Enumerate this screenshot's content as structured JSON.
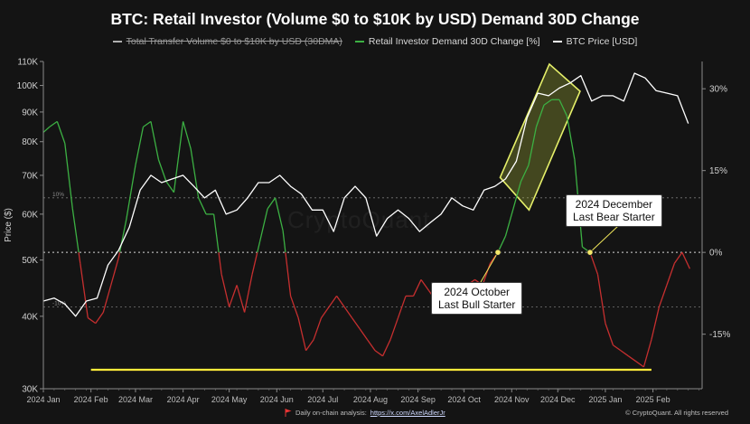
{
  "chart_data": {
    "type": "line",
    "title": "BTC: Retail Investor (Volume $0 to $10K by USD) Demand 30D Change",
    "ylabel_left": "Price ($)",
    "left_axis": {
      "scale": "log",
      "range": [
        30000,
        110000
      ],
      "ticks": [
        "30K",
        "40K",
        "50K",
        "60K",
        "70K",
        "80K",
        "90K",
        "100K",
        "110K"
      ],
      "tick_values": [
        30000,
        40000,
        50000,
        60000,
        70000,
        80000,
        90000,
        100000,
        110000
      ]
    },
    "right_axis": {
      "range": [
        -0.25,
        0.35
      ],
      "ticks": [
        "30%",
        "15%",
        "0%",
        "-15%"
      ],
      "tick_values": [
        0.3,
        0.15,
        0.0,
        -0.15
      ]
    },
    "reference_lines": [
      {
        "label": "10%",
        "value": 0.1
      },
      {
        "label": "-10%",
        "value": -0.1
      }
    ],
    "x_ticks": [
      "2024 Jan",
      "2024 Feb",
      "2024 Mar",
      "2024 Apr",
      "2024 May",
      "2024 Jun",
      "2024 Jul",
      "2024 Aug",
      "2024 Sep",
      "2024 Oct",
      "2024 Nov",
      "2024 Dec",
      "2025 Jan",
      "2025 Feb"
    ],
    "legend": [
      {
        "name": "Total Transfer Volume $0 to $10K by USD (30DMA)",
        "color": "#b0b0b0",
        "struck": true
      },
      {
        "name": "Retail Investor Demand 30D Change [%]",
        "color": "#3cb043",
        "struck": false
      },
      {
        "name": "BTC Price [USD]",
        "color": "#ffffff",
        "struck": false
      }
    ],
    "series": [
      {
        "name": "BTC Price [USD]",
        "axis": "left",
        "color": "#ffffff",
        "x": [
          "2024-01-01",
          "2024-01-08",
          "2024-01-15",
          "2024-01-22",
          "2024-01-29",
          "2024-02-05",
          "2024-02-12",
          "2024-02-19",
          "2024-02-26",
          "2024-03-04",
          "2024-03-11",
          "2024-03-18",
          "2024-03-25",
          "2024-04-01",
          "2024-04-08",
          "2024-04-15",
          "2024-04-22",
          "2024-04-29",
          "2024-05-06",
          "2024-05-13",
          "2024-05-20",
          "2024-05-27",
          "2024-06-03",
          "2024-06-10",
          "2024-06-17",
          "2024-06-24",
          "2024-07-01",
          "2024-07-08",
          "2024-07-15",
          "2024-07-22",
          "2024-07-29",
          "2024-08-05",
          "2024-08-12",
          "2024-08-19",
          "2024-08-26",
          "2024-09-02",
          "2024-09-09",
          "2024-09-16",
          "2024-09-23",
          "2024-09-30",
          "2024-10-07",
          "2024-10-14",
          "2024-10-21",
          "2024-10-28",
          "2024-11-04",
          "2024-11-11",
          "2024-11-18",
          "2024-11-25",
          "2024-12-02",
          "2024-12-09",
          "2024-12-16",
          "2024-12-23",
          "2024-12-30",
          "2025-01-06",
          "2025-01-13",
          "2025-01-20",
          "2025-01-27",
          "2025-02-03",
          "2025-02-10",
          "2025-02-17",
          "2025-02-24"
        ],
        "y": [
          42500,
          43000,
          42000,
          40000,
          42500,
          43000,
          49000,
          52000,
          57000,
          66000,
          70000,
          68000,
          69000,
          70000,
          67000,
          64000,
          66000,
          60000,
          61000,
          64000,
          68000,
          68000,
          70000,
          67000,
          65000,
          61000,
          61000,
          56000,
          64000,
          67000,
          64000,
          55000,
          59000,
          61000,
          59000,
          56000,
          58000,
          60000,
          64000,
          62000,
          61000,
          66000,
          67000,
          69000,
          74000,
          88000,
          97000,
          96000,
          99000,
          101000,
          104000,
          94000,
          96000,
          96000,
          94000,
          105000,
          103000,
          98000,
          97000,
          96000,
          86000
        ]
      },
      {
        "name": "Retail Investor Demand 30D Change [%]",
        "axis": "right",
        "color_positive": "#3cb043",
        "color_negative": "#c62f2f",
        "x": [
          "2024-01-01",
          "2024-01-05",
          "2024-01-10",
          "2024-01-15",
          "2024-01-20",
          "2024-01-25",
          "2024-01-30",
          "2024-02-04",
          "2024-02-09",
          "2024-02-14",
          "2024-02-19",
          "2024-02-24",
          "2024-03-01",
          "2024-03-06",
          "2024-03-11",
          "2024-03-16",
          "2024-03-21",
          "2024-03-26",
          "2024-04-01",
          "2024-04-06",
          "2024-04-11",
          "2024-04-16",
          "2024-04-21",
          "2024-04-26",
          "2024-05-01",
          "2024-05-06",
          "2024-05-11",
          "2024-05-16",
          "2024-05-21",
          "2024-05-26",
          "2024-05-31",
          "2024-06-05",
          "2024-06-10",
          "2024-06-15",
          "2024-06-20",
          "2024-06-25",
          "2024-06-30",
          "2024-07-05",
          "2024-07-10",
          "2024-07-15",
          "2024-07-20",
          "2024-07-25",
          "2024-07-30",
          "2024-08-04",
          "2024-08-09",
          "2024-08-14",
          "2024-08-19",
          "2024-08-24",
          "2024-08-29",
          "2024-09-03",
          "2024-09-08",
          "2024-09-13",
          "2024-09-18",
          "2024-09-23",
          "2024-09-28",
          "2024-10-03",
          "2024-10-08",
          "2024-10-13",
          "2024-10-18",
          "2024-10-23",
          "2024-10-28",
          "2024-11-02",
          "2024-11-07",
          "2024-11-12",
          "2024-11-17",
          "2024-11-22",
          "2024-11-27",
          "2024-12-02",
          "2024-12-07",
          "2024-12-12",
          "2024-12-17",
          "2024-12-22",
          "2024-12-27",
          "2025-01-01",
          "2025-01-06",
          "2025-01-11",
          "2025-01-16",
          "2025-01-21",
          "2025-01-26",
          "2025-01-31",
          "2025-02-05",
          "2025-02-10",
          "2025-02-15",
          "2025-02-20",
          "2025-02-25"
        ],
        "y": [
          0.22,
          0.23,
          0.24,
          0.2,
          0.08,
          -0.02,
          -0.12,
          -0.13,
          -0.11,
          -0.06,
          -0.01,
          0.06,
          0.16,
          0.23,
          0.24,
          0.17,
          0.13,
          0.11,
          0.24,
          0.19,
          0.1,
          0.07,
          0.07,
          -0.04,
          -0.1,
          -0.06,
          -0.11,
          -0.04,
          0.02,
          0.08,
          0.1,
          0.04,
          -0.08,
          -0.12,
          -0.18,
          -0.16,
          -0.12,
          -0.1,
          -0.08,
          -0.1,
          -0.12,
          -0.14,
          -0.16,
          -0.18,
          -0.19,
          -0.16,
          -0.12,
          -0.08,
          -0.08,
          -0.05,
          -0.07,
          -0.09,
          -0.07,
          -0.06,
          -0.08,
          -0.06,
          -0.05,
          -0.06,
          -0.02,
          0.0,
          0.03,
          0.08,
          0.13,
          0.16,
          0.23,
          0.27,
          0.28,
          0.28,
          0.25,
          0.17,
          0.01,
          0.0,
          -0.04,
          -0.13,
          -0.17,
          -0.18,
          -0.19,
          -0.2,
          -0.21,
          -0.16,
          -0.1,
          -0.06,
          -0.02,
          0.0,
          -0.03
        ]
      }
    ],
    "annotations": [
      {
        "line1": "2024 October",
        "line2": "Last Bull Starter",
        "x": "2024-10-23",
        "y": 0.0
      },
      {
        "line1": "2024 December",
        "line2": "Last Bear Starter",
        "x": "2024-12-22",
        "y": 0.0
      }
    ],
    "highlight_box": {
      "from": "2024-10-28",
      "to": "2024-12-12",
      "price_from": 66000,
      "price_to": 105000
    },
    "support_line": {
      "from": "2024-02-01",
      "to": "2025-01-31",
      "color": "#ffeb3b"
    }
  },
  "footer": {
    "analysis_label": "Daily on-chain analysis:",
    "analysis_link": "https://x.com/AxelAdlerJr",
    "copyright": "© CryptoQuant. All rights reserved"
  },
  "watermark": "CryptoQuant"
}
